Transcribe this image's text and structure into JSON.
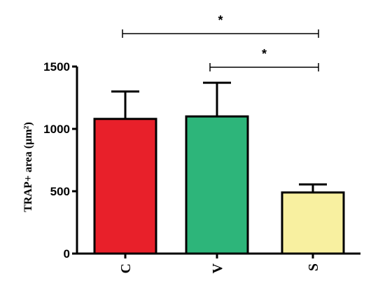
{
  "chart_data": {
    "type": "bar",
    "title": "",
    "xlabel": "",
    "ylabel": "TRAP+ area  (µm²)",
    "ylim": [
      0,
      1500
    ],
    "yticks": [
      0,
      500,
      1000,
      1500
    ],
    "categories": [
      "C",
      "V",
      "S"
    ],
    "values": [
      1080,
      1100,
      490
    ],
    "errors": [
      220,
      270,
      65
    ],
    "colors": [
      "#e8202a",
      "#2db57a",
      "#f8f0a0"
    ],
    "grid": false,
    "legend": "none",
    "significance": [
      {
        "from": "C",
        "to": "S",
        "label": "*"
      },
      {
        "from": "V",
        "to": "S",
        "label": "*"
      }
    ]
  }
}
